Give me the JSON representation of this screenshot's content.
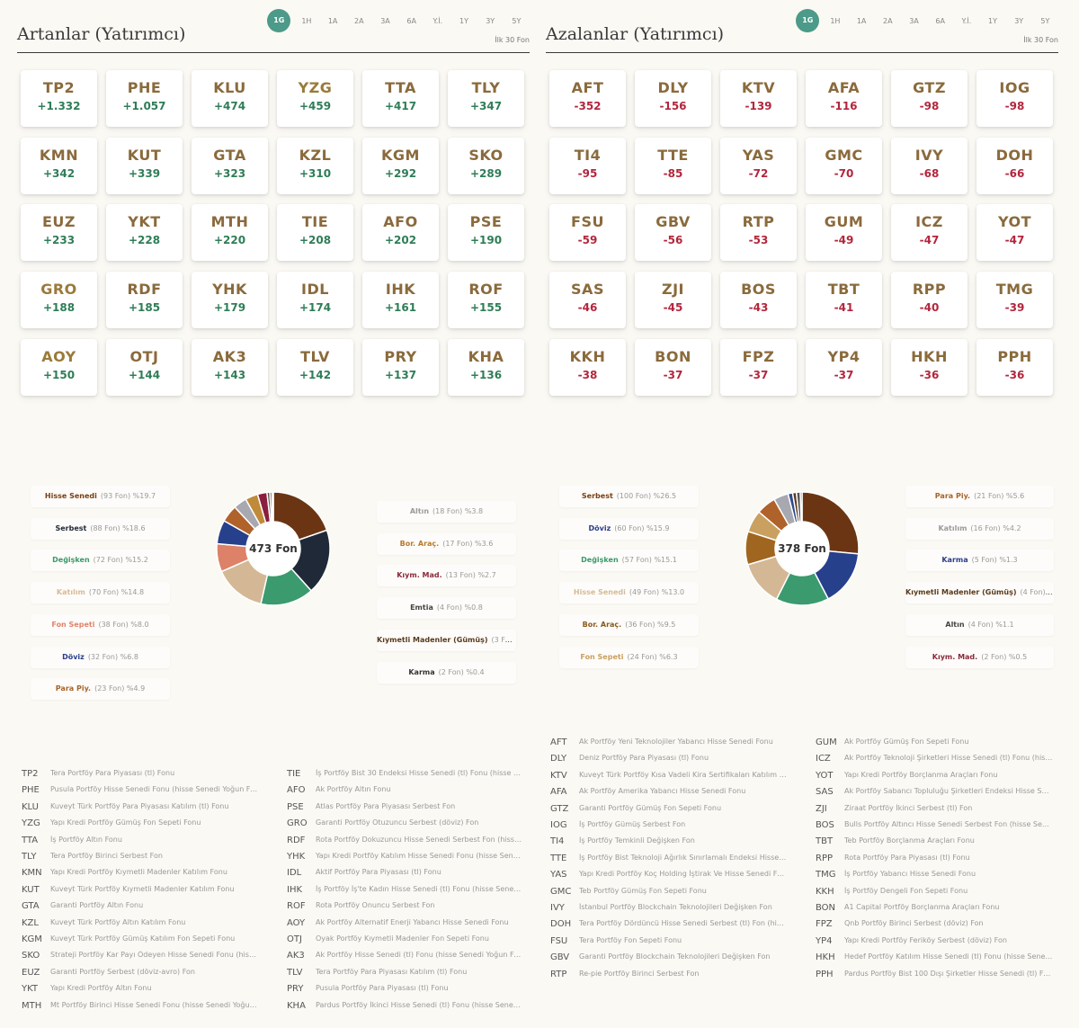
{
  "periods": [
    "1G",
    "1H",
    "1A",
    "2A",
    "3A",
    "6A",
    "Y.İ.",
    "1Y",
    "3Y",
    "5Y"
  ],
  "active_period": "1G",
  "left": {
    "title": "Artanlar (Yatırımcı)",
    "limit_note": "İlk 30 Fon",
    "cards": [
      {
        "code": "TP2",
        "chg": "+1.332",
        "color": "money"
      },
      {
        "code": "PHE",
        "chg": "+1.057",
        "color": "money"
      },
      {
        "code": "KLU",
        "chg": "+474",
        "color": "money"
      },
      {
        "code": "YZG",
        "chg": "+459",
        "color": "gold"
      },
      {
        "code": "TTA",
        "chg": "+417",
        "color": "money"
      },
      {
        "code": "TLY",
        "chg": "+347",
        "color": "money"
      },
      {
        "code": "KMN",
        "chg": "+342",
        "color": "money"
      },
      {
        "code": "KUT",
        "chg": "+339",
        "color": "money"
      },
      {
        "code": "GTA",
        "chg": "+323",
        "color": "money"
      },
      {
        "code": "KZL",
        "chg": "+310",
        "color": "money"
      },
      {
        "code": "KGM",
        "chg": "+292",
        "color": "money"
      },
      {
        "code": "SKO",
        "chg": "+289",
        "color": "money"
      },
      {
        "code": "EUZ",
        "chg": "+233",
        "color": "money"
      },
      {
        "code": "YKT",
        "chg": "+228",
        "color": "money"
      },
      {
        "code": "MTH",
        "chg": "+220",
        "color": "money"
      },
      {
        "code": "TIE",
        "chg": "+208",
        "color": "money"
      },
      {
        "code": "AFO",
        "chg": "+202",
        "color": "money"
      },
      {
        "code": "PSE",
        "chg": "+190",
        "color": "money"
      },
      {
        "code": "GRO",
        "chg": "+188",
        "color": "gold"
      },
      {
        "code": "RDF",
        "chg": "+185",
        "color": "money"
      },
      {
        "code": "YHK",
        "chg": "+179",
        "color": "money"
      },
      {
        "code": "IDL",
        "chg": "+174",
        "color": "money"
      },
      {
        "code": "IHK",
        "chg": "+161",
        "color": "money"
      },
      {
        "code": "ROF",
        "chg": "+155",
        "color": "money"
      },
      {
        "code": "AOY",
        "chg": "+150",
        "color": "gold"
      },
      {
        "code": "OTJ",
        "chg": "+144",
        "color": "money"
      },
      {
        "code": "AK3",
        "chg": "+143",
        "color": "money"
      },
      {
        "code": "TLV",
        "chg": "+142",
        "color": "money"
      },
      {
        "code": "PRY",
        "chg": "+137",
        "color": "money"
      },
      {
        "code": "KHA",
        "chg": "+136",
        "color": "money"
      }
    ],
    "donut_total": "473 Fon",
    "legend_left": [
      {
        "name": "Hisse Senedi",
        "meta": "(93 Fon) %19.7",
        "color": "#7a3f12"
      },
      {
        "name": "Serbest",
        "meta": "(88 Fon) %18.6",
        "color": "#222a38"
      },
      {
        "name": "Değişken",
        "meta": "(72 Fon) %15.2",
        "color": "#3a9a6a"
      },
      {
        "name": "Katılım",
        "meta": "(70 Fon) %14.8",
        "color": "#d6bb95"
      },
      {
        "name": "Fon Sepeti",
        "meta": "(38 Fon) %8.0",
        "color": "#e0846b"
      },
      {
        "name": "Döviz",
        "meta": "(32 Fon) %6.8",
        "color": "#2a3d8a"
      },
      {
        "name": "Para Piy.",
        "meta": "(23 Fon) %4.9",
        "color": "#a8642a"
      }
    ],
    "legend_right": [
      {
        "name": "Altın",
        "meta": "(18 Fon) %3.8",
        "color": "#9a9a9a"
      },
      {
        "name": "Bor. Araç.",
        "meta": "(17 Fon) %3.6",
        "color": "#b87a2a"
      },
      {
        "name": "Kıym. Mad.",
        "meta": "(13 Fon) %2.7",
        "color": "#8a2a3a"
      },
      {
        "name": "Emtia",
        "meta": "(4 Fon) %0.8",
        "color": "#444"
      },
      {
        "name": "Kıymetli Madenler (Gümüş)",
        "meta": "(3 Fon) ...",
        "color": "#5a3a1a"
      },
      {
        "name": "Karma",
        "meta": "(2 Fon) %0.4",
        "color": "#333"
      }
    ],
    "slices": [
      {
        "value": 19.7,
        "color": "#6b3513"
      },
      {
        "value": 18.6,
        "color": "#1f2937"
      },
      {
        "value": 15.2,
        "color": "#3b9a6e"
      },
      {
        "value": 14.8,
        "color": "#d4b896"
      },
      {
        "value": 8.0,
        "color": "#dd8169"
      },
      {
        "value": 6.8,
        "color": "#27408b"
      },
      {
        "value": 4.9,
        "color": "#b0622b"
      },
      {
        "value": 3.8,
        "color": "#a8a8b0"
      },
      {
        "value": 3.6,
        "color": "#c08a3b"
      },
      {
        "value": 2.7,
        "color": "#8b1e3f"
      },
      {
        "value": 0.8,
        "color": "#555"
      },
      {
        "value": 0.6,
        "color": "#5c3b1a"
      },
      {
        "value": 0.4,
        "color": "#333"
      }
    ],
    "funds_col1": [
      {
        "code": "TP2",
        "name": "Tera Portföy Para Piyasası (tl) Fonu"
      },
      {
        "code": "PHE",
        "name": "Pusula Portföy Hisse Senedi Fonu (hisse Senedi Yoğun Fon)"
      },
      {
        "code": "KLU",
        "name": "Kuveyt Türk Portföy Para Piyasası Katılım (tl) Fonu"
      },
      {
        "code": "YZG",
        "name": "Yapı Kredi Portföy Gümüş Fon Sepeti Fonu"
      },
      {
        "code": "TTA",
        "name": "İş Portföy Altın Fonu"
      },
      {
        "code": "TLY",
        "name": "Tera Portföy Birinci Serbest Fon"
      },
      {
        "code": "KMN",
        "name": "Yapı Kredi Portföy Kıymetli Madenler Katılım Fonu"
      },
      {
        "code": "KUT",
        "name": "Kuveyt Türk Portföy Kıymetli Madenler Katılım Fonu"
      },
      {
        "code": "GTA",
        "name": "Garanti Portföy Altın Fonu"
      },
      {
        "code": "KZL",
        "name": "Kuveyt Türk Portföy Altın Katılım Fonu"
      },
      {
        "code": "KGM",
        "name": "Kuveyt Türk Portföy Gümüş Katılım Fon Sepeti Fonu"
      },
      {
        "code": "SKO",
        "name": "Strateji Portföy Kar Payı Ödeyen Hisse Senedi Fonu (hisse ..."
      },
      {
        "code": "EUZ",
        "name": "Garanti Portföy Serbest (döviz-avro) Fon"
      },
      {
        "code": "YKT",
        "name": "Yapı Kredi Portföy Altın Fonu"
      },
      {
        "code": "MTH",
        "name": "Mt Portföy Birinci Hisse Senedi Fonu (hisse Senedi Yoğun F..."
      }
    ],
    "funds_col2": [
      {
        "code": "TIE",
        "name": "İş Portföy Bist 30 Endeksi Hisse Senedi (tl) Fonu (hisse Sen..."
      },
      {
        "code": "AFO",
        "name": "Ak Portföy Altın Fonu"
      },
      {
        "code": "PSE",
        "name": "Atlas Portföy Para Piyasası Serbest Fon"
      },
      {
        "code": "GRO",
        "name": "Garanti Portföy Otuzuncu Serbest (döviz) Fon"
      },
      {
        "code": "RDF",
        "name": "Rota Portföy Dokuzuncu Hisse Senedi Serbest Fon (hisse S..."
      },
      {
        "code": "YHK",
        "name": "Yapı Kredi Portföy Katılım Hisse Senedi Fonu (hisse Senedi ..."
      },
      {
        "code": "IDL",
        "name": "Aktif Portföy Para Piyasası (tl) Fonu"
      },
      {
        "code": "IHK",
        "name": "İş Portföy İş'te Kadın Hisse Senedi (tl) Fonu (hisse Senedi Y..."
      },
      {
        "code": "ROF",
        "name": "Rota Portföy Onuncu Serbest Fon"
      },
      {
        "code": "AOY",
        "name": "Ak Portföy Alternatif Enerji Yabancı Hisse Senedi Fonu"
      },
      {
        "code": "OTJ",
        "name": "Oyak Portföy Kıymetli Madenler Fon Sepeti Fonu"
      },
      {
        "code": "AK3",
        "name": "Ak Portföy Hisse Senedi (tl) Fonu (hisse Senedi Yoğun Fon)"
      },
      {
        "code": "TLV",
        "name": "Tera Portföy Para Piyasası Katılım (tl) Fonu"
      },
      {
        "code": "PRY",
        "name": "Pusula Portföy Para Piyasası (tl) Fonu"
      },
      {
        "code": "KHA",
        "name": "Pardus Portföy İkinci Hisse Senedi (tl) Fonu (hisse Senedi Y..."
      }
    ]
  },
  "right": {
    "title": "Azalanlar (Yatırımcı)",
    "limit_note": "İlk 30 Fon",
    "cards": [
      {
        "code": "AFT",
        "chg": "-352",
        "color": "money"
      },
      {
        "code": "DLY",
        "chg": "-156",
        "color": "money"
      },
      {
        "code": "KTV",
        "chg": "-139",
        "color": "money"
      },
      {
        "code": "AFA",
        "chg": "-116",
        "color": "money"
      },
      {
        "code": "GTZ",
        "chg": "-98",
        "color": "money"
      },
      {
        "code": "IOG",
        "chg": "-98",
        "color": "money"
      },
      {
        "code": "TI4",
        "chg": "-95",
        "color": "money"
      },
      {
        "code": "TTE",
        "chg": "-85",
        "color": "money"
      },
      {
        "code": "YAS",
        "chg": "-72",
        "color": "money"
      },
      {
        "code": "GMC",
        "chg": "-70",
        "color": "money"
      },
      {
        "code": "IVY",
        "chg": "-68",
        "color": "money"
      },
      {
        "code": "DOH",
        "chg": "-66",
        "color": "money"
      },
      {
        "code": "FSU",
        "chg": "-59",
        "color": "money"
      },
      {
        "code": "GBV",
        "chg": "-56",
        "color": "money"
      },
      {
        "code": "RTP",
        "chg": "-53",
        "color": "money"
      },
      {
        "code": "GUM",
        "chg": "-49",
        "color": "money"
      },
      {
        "code": "ICZ",
        "chg": "-47",
        "color": "money"
      },
      {
        "code": "YOT",
        "chg": "-47",
        "color": "money"
      },
      {
        "code": "SAS",
        "chg": "-46",
        "color": "money"
      },
      {
        "code": "ZJI",
        "chg": "-45",
        "color": "money"
      },
      {
        "code": "BOS",
        "chg": "-43",
        "color": "money"
      },
      {
        "code": "TBT",
        "chg": "-41",
        "color": "money"
      },
      {
        "code": "RPP",
        "chg": "-40",
        "color": "money"
      },
      {
        "code": "TMG",
        "chg": "-39",
        "color": "money"
      },
      {
        "code": "KKH",
        "chg": "-38",
        "color": "money"
      },
      {
        "code": "BON",
        "chg": "-37",
        "color": "money"
      },
      {
        "code": "FPZ",
        "chg": "-37",
        "color": "money"
      },
      {
        "code": "YP4",
        "chg": "-37",
        "color": "money"
      },
      {
        "code": "HKH",
        "chg": "-36",
        "color": "money"
      },
      {
        "code": "PPH",
        "chg": "-36",
        "color": "money"
      }
    ],
    "donut_total": "378 Fon",
    "legend_left": [
      {
        "name": "Serbest",
        "meta": "(100 Fon) %26.5",
        "color": "#7a3f12"
      },
      {
        "name": "Döviz",
        "meta": "(60 Fon) %15.9",
        "color": "#2a3d8a"
      },
      {
        "name": "Değişken",
        "meta": "(57 Fon) %15.1",
        "color": "#3a9a6a"
      },
      {
        "name": "Hisse Senedi",
        "meta": "(49 Fon) %13.0",
        "color": "#d6bb95"
      },
      {
        "name": "Bor. Araç.",
        "meta": "(36 Fon) %9.5",
        "color": "#8a5a1a"
      },
      {
        "name": "Fon Sepeti",
        "meta": "(24 Fon) %6.3",
        "color": "#c9a060"
      }
    ],
    "legend_right": [
      {
        "name": "Para Piy.",
        "meta": "(21 Fon) %5.6",
        "color": "#a8642a"
      },
      {
        "name": "Katılım",
        "meta": "(16 Fon) %4.2",
        "color": "#9a9a9a"
      },
      {
        "name": "Karma",
        "meta": "(5 Fon) %1.3",
        "color": "#2a3d8a"
      },
      {
        "name": "Kıymetli Madenler (Gümüş)",
        "meta": "(4 Fon) ...",
        "color": "#5a3a1a"
      },
      {
        "name": "Altın",
        "meta": "(4 Fon) %1.1",
        "color": "#444"
      },
      {
        "name": "Kıym. Mad.",
        "meta": "(2 Fon) %0.5",
        "color": "#8a2a3a"
      }
    ],
    "slices": [
      {
        "value": 26.5,
        "color": "#6b3513"
      },
      {
        "value": 15.9,
        "color": "#27408b"
      },
      {
        "value": 15.1,
        "color": "#3b9a6e"
      },
      {
        "value": 13.0,
        "color": "#d4b896"
      },
      {
        "value": 9.5,
        "color": "#a0661f"
      },
      {
        "value": 6.3,
        "color": "#c9a060"
      },
      {
        "value": 5.6,
        "color": "#b0622b"
      },
      {
        "value": 4.2,
        "color": "#a8a8b0"
      },
      {
        "value": 1.3,
        "color": "#2f4a8f"
      },
      {
        "value": 1.1,
        "color": "#5c3b1a"
      },
      {
        "value": 1.1,
        "color": "#555"
      },
      {
        "value": 0.5,
        "color": "#8b1e3f"
      }
    ],
    "funds_col1": [
      {
        "code": "AFT",
        "name": "Ak Portföy Yeni Teknolojiler Yabancı Hisse Senedi Fonu"
      },
      {
        "code": "DLY",
        "name": "Deniz Portföy Para Piyasası (tl) Fonu"
      },
      {
        "code": "KTV",
        "name": "Kuveyt Türk Portföy Kısa Vadeli Kira Sertifikaları Katılım (tl) ..."
      },
      {
        "code": "AFA",
        "name": "Ak Portföy Amerika Yabancı Hisse Senedi Fonu"
      },
      {
        "code": "GTZ",
        "name": "Garanti Portföy Gümüş Fon Sepeti Fonu"
      },
      {
        "code": "IOG",
        "name": "İş Portföy Gümüş Serbest Fon"
      },
      {
        "code": "TI4",
        "name": "İş Portföy Temkinli Değişken Fon"
      },
      {
        "code": "TTE",
        "name": "İş Portföy Bist Teknoloji Ağırlık Sınırlamalı Endeksi Hisse Se..."
      },
      {
        "code": "YAS",
        "name": "Yapı Kredi Portföy Koç Holding İştirak Ve Hisse Senedi Fon..."
      },
      {
        "code": "GMC",
        "name": "Teb Portföy Gümüş Fon Sepeti Fonu"
      },
      {
        "code": "IVY",
        "name": "İstanbul Portföy Blockchain Teknolojileri Değişken Fon"
      },
      {
        "code": "DOH",
        "name": "Tera Portföy Dördüncü Hisse Senedi Serbest (tl) Fon (hisse ..."
      },
      {
        "code": "FSU",
        "name": "Tera Portföy Fon Sepeti Fonu"
      },
      {
        "code": "GBV",
        "name": "Garanti Portföy Blockchain Teknolojileri Değişken Fon"
      },
      {
        "code": "RTP",
        "name": "Re-pie Portföy Birinci Serbest Fon"
      }
    ],
    "funds_col2": [
      {
        "code": "GUM",
        "name": "Ak Portföy Gümüş Fon Sepeti Fonu"
      },
      {
        "code": "ICZ",
        "name": "Ak Portföy Teknoloji Şirketleri Hisse Senedi (tl) Fonu (hisse ..."
      },
      {
        "code": "YOT",
        "name": "Yapı Kredi Portföy Borçlanma Araçları Fonu"
      },
      {
        "code": "SAS",
        "name": "Ak Portföy Sabancı Topluluğu Şirketleri Endeksi Hisse Sene..."
      },
      {
        "code": "ZJI",
        "name": "Ziraat Portföy İkinci Serbest (tl) Fon"
      },
      {
        "code": "BOS",
        "name": "Bulls Portföy Altıncı Hisse Senedi Serbest Fon (hisse Sened..."
      },
      {
        "code": "TBT",
        "name": "Teb Portföy Borçlanma Araçları Fonu"
      },
      {
        "code": "RPP",
        "name": "Rota Portföy Para Piyasası (tl) Fonu"
      },
      {
        "code": "TMG",
        "name": "İş Portföy Yabancı Hisse Senedi Fonu"
      },
      {
        "code": "KKH",
        "name": "İş Portföy Dengeli Fon Sepeti Fonu"
      },
      {
        "code": "BON",
        "name": "A1 Capital Portföy Borçlanma Araçları Fonu"
      },
      {
        "code": "FPZ",
        "name": "Qnb Portföy Birinci Serbest (döviz) Fon"
      },
      {
        "code": "YP4",
        "name": "Yapı Kredi Portföy Feriköy Serbest (döviz) Fon"
      },
      {
        "code": "HKH",
        "name": "Hedef Portföy Katılım Hisse Senedi (tl) Fonu (hisse Senedi ..."
      },
      {
        "code": "PPH",
        "name": "Pardus Portföy Bist 100 Dışı Şirketler Hisse Senedi (tl) Fonu ..."
      }
    ]
  }
}
